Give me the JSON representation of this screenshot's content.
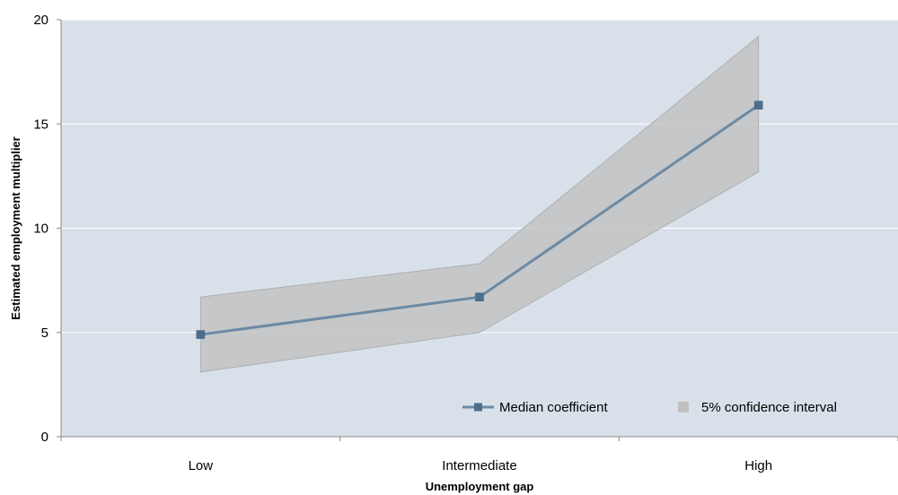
{
  "chart_data": {
    "type": "line",
    "title": "",
    "xlabel": "Unemployment gap",
    "ylabel": "Estimated employment multiplier",
    "categories": [
      "Low",
      "Intermediate",
      "High"
    ],
    "ylim": [
      0,
      20
    ],
    "yticks": [
      "0",
      "5",
      "10",
      "15",
      "20"
    ],
    "grid": true,
    "legend_position": "bottom-right",
    "series": [
      {
        "name": "Median coefficient",
        "type": "line",
        "values": [
          4.9,
          6.7,
          15.9
        ],
        "color": "#4d6f8c"
      },
      {
        "name": "5% confidence interval",
        "type": "band",
        "lower": [
          3.1,
          5.0,
          12.7
        ],
        "upper": [
          6.7,
          8.3,
          19.2
        ],
        "color": "#c0c0c0"
      }
    ],
    "plot_background": "#d8e1ea"
  }
}
